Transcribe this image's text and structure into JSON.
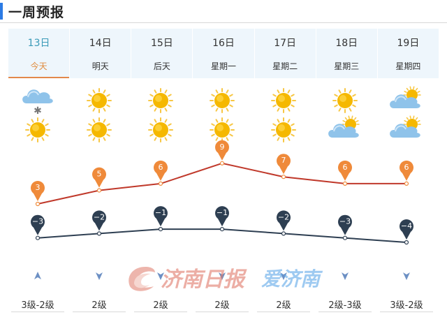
{
  "header": {
    "title": "一周预报"
  },
  "days": [
    {
      "date": "13日",
      "weekday": "今天",
      "day_icon": "cloud-snow-icon",
      "night_icon": "sun-icon",
      "high": 3,
      "low": -3,
      "high_label": "3",
      "low_label": "−3",
      "wind": "3级-2级",
      "wind_icon": "up-arrow-icon"
    },
    {
      "date": "14日",
      "weekday": "明天",
      "day_icon": "sun-icon",
      "night_icon": "sun-icon",
      "high": 5,
      "low": -2,
      "high_label": "5",
      "low_label": "−2",
      "wind": "2级",
      "wind_icon": "down-arrow-icon"
    },
    {
      "date": "15日",
      "weekday": "后天",
      "day_icon": "sun-icon",
      "night_icon": "sun-icon",
      "high": 6,
      "low": -1,
      "high_label": "6",
      "low_label": "−1",
      "wind": "2级",
      "wind_icon": "down-arrow-icon"
    },
    {
      "date": "16日",
      "weekday": "星期一",
      "day_icon": "sun-icon",
      "night_icon": "sun-icon",
      "high": 9,
      "low": -1,
      "high_label": "9",
      "low_label": "−1",
      "wind": "2级",
      "wind_icon": "down-arrow-icon"
    },
    {
      "date": "17日",
      "weekday": "星期二",
      "day_icon": "sun-icon",
      "night_icon": "sun-icon",
      "high": 7,
      "low": -2,
      "high_label": "7",
      "low_label": "−2",
      "wind": "2级",
      "wind_icon": "down-arrow-icon"
    },
    {
      "date": "18日",
      "weekday": "星期三",
      "day_icon": "sun-icon",
      "night_icon": "partly-cloudy-icon",
      "high": 6,
      "low": -3,
      "high_label": "6",
      "low_label": "−3",
      "wind": "2级-3级",
      "wind_icon": "down-arrow-icon"
    },
    {
      "date": "19日",
      "weekday": "星期四",
      "day_icon": "partly-cloudy-icon",
      "night_icon": "partly-cloudy-icon",
      "high": 6,
      "low": -4,
      "high_label": "6",
      "low_label": "−4",
      "wind": "3级-2级",
      "wind_icon": "down-arrow-icon"
    }
  ],
  "watermark": {
    "left_text": "济南日报",
    "right_text": "爱济南"
  },
  "colors": {
    "accent_blue": "#2c7be5",
    "today_text": "#3a9ab8",
    "today_underline": "#e2884b",
    "high_line": "#c0392b",
    "high_marker": "#ef8a3a",
    "low_line": "#2e3f52",
    "low_marker": "#2e3f52",
    "sun": "#f5b800",
    "cloud": "#8fc3ea",
    "wind_arrow": "#6d90c4"
  }
}
